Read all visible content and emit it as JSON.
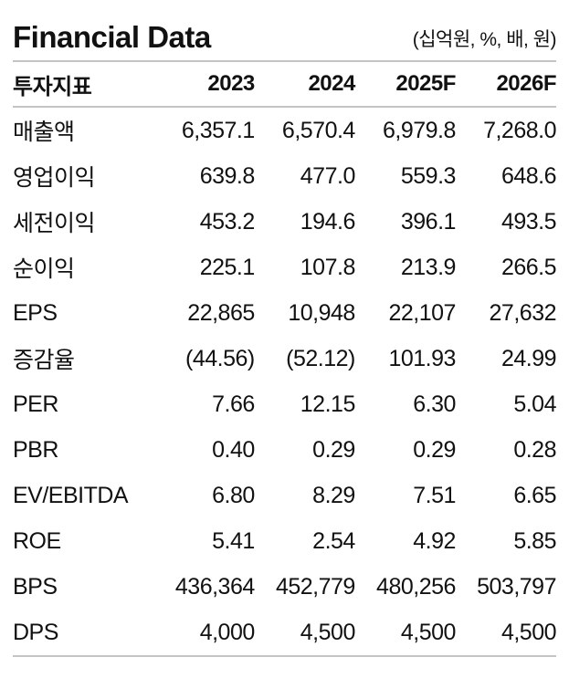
{
  "header": {
    "title": "Financial Data",
    "unit_note": "(십억원, %, 배, 원)"
  },
  "chart_data": {
    "type": "table",
    "title": "Financial Data",
    "unit_note": "(십억원, %, 배, 원)",
    "columns": [
      "투자지표",
      "2023",
      "2024",
      "2025F",
      "2026F"
    ],
    "rows": [
      {
        "label": "매출액",
        "values": [
          "6,357.1",
          "6,570.4",
          "6,979.8",
          "7,268.0"
        ]
      },
      {
        "label": "영업이익",
        "values": [
          "639.8",
          "477.0",
          "559.3",
          "648.6"
        ]
      },
      {
        "label": "세전이익",
        "values": [
          "453.2",
          "194.6",
          "396.1",
          "493.5"
        ]
      },
      {
        "label": "순이익",
        "values": [
          "225.1",
          "107.8",
          "213.9",
          "266.5"
        ]
      },
      {
        "label": "EPS",
        "values": [
          "22,865",
          "10,948",
          "22,107",
          "27,632"
        ]
      },
      {
        "label": "증감율",
        "values": [
          "(44.56)",
          "(52.12)",
          "101.93",
          "24.99"
        ]
      },
      {
        "label": "PER",
        "values": [
          "7.66",
          "12.15",
          "6.30",
          "5.04"
        ]
      },
      {
        "label": "PBR",
        "values": [
          "0.40",
          "0.29",
          "0.29",
          "0.28"
        ]
      },
      {
        "label": "EV/EBITDA",
        "values": [
          "6.80",
          "8.29",
          "7.51",
          "6.65"
        ]
      },
      {
        "label": "ROE",
        "values": [
          "5.41",
          "2.54",
          "4.92",
          "5.85"
        ]
      },
      {
        "label": "BPS",
        "values": [
          "436,364",
          "452,779",
          "480,256",
          "503,797"
        ]
      },
      {
        "label": "DPS",
        "values": [
          "4,000",
          "4,500",
          "4,500",
          "4,500"
        ]
      }
    ]
  },
  "colors": {
    "text": "#111111",
    "rule": "#c4c4c4",
    "background": "#ffffff"
  }
}
